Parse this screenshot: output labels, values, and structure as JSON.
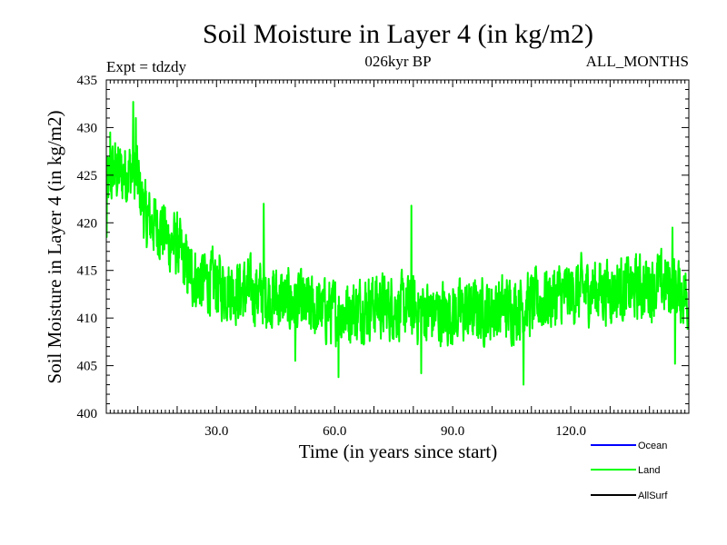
{
  "chart_data": {
    "type": "line",
    "title": "Soil Moisture in Layer 4 (in kg/m2)",
    "subtitle_left": "Expt = tdzdy",
    "subtitle_center": "026kyr BP",
    "subtitle_right": "ALL_MONTHS",
    "xlabel": "Time (in years since start)",
    "ylabel": "Soil Moisture in Layer 4 (in kg/m2)",
    "xlim": [
      2,
      150
    ],
    "ylim": [
      400,
      435
    ],
    "x_ticks": [
      30,
      60,
      90,
      120
    ],
    "x_tick_labels": [
      "30.0",
      "60.0",
      "90.0",
      "120.0"
    ],
    "y_ticks": [
      400,
      405,
      410,
      415,
      420,
      425,
      430,
      435
    ],
    "y_tick_labels": [
      "400",
      "405",
      "410",
      "415",
      "420",
      "425",
      "430",
      "435"
    ],
    "grid": false,
    "legend_position": "bottom-right",
    "series": [
      {
        "name": "Ocean",
        "color": "#0000ff",
        "values": []
      },
      {
        "name": "Land",
        "color": "#00ff00",
        "anchors_x": [
          2,
          4,
          6,
          8,
          10,
          12,
          14,
          16,
          18,
          20,
          22,
          24,
          26,
          28,
          30,
          34,
          38,
          42,
          46,
          50,
          54,
          58,
          62,
          66,
          70,
          74,
          78,
          82,
          86,
          90,
          94,
          98,
          102,
          106,
          110,
          114,
          118,
          122,
          126,
          130,
          134,
          138,
          142,
          146,
          150
        ],
        "anchors_y": [
          423.5,
          425.5,
          425.0,
          425.5,
          424.5,
          420.5,
          420.0,
          419.5,
          418.0,
          417.5,
          415.5,
          414.5,
          414.0,
          413.8,
          413.5,
          413.0,
          412.8,
          412.5,
          412.0,
          411.5,
          411.0,
          410.8,
          410.5,
          411.0,
          411.5,
          411.2,
          411.0,
          410.8,
          410.5,
          410.5,
          410.6,
          410.8,
          411.0,
          411.2,
          411.5,
          412.0,
          412.5,
          412.8,
          413.0,
          413.0,
          413.0,
          413.2,
          413.5,
          413.5,
          412.0
        ],
        "noise_amplitude": 2.6,
        "peaks": [
          [
            8.8,
            432.7
          ],
          [
            9.5,
            431.0
          ],
          [
            42.0,
            422.0
          ],
          [
            79.5,
            421.8
          ],
          [
            145.8,
            419.5
          ],
          [
            3.0,
            429.5
          ]
        ],
        "troughs": [
          [
            108.0,
            403.0
          ],
          [
            61.0,
            403.8
          ],
          [
            82.0,
            404.2
          ],
          [
            146.5,
            405.2
          ],
          [
            50.0,
            405.5
          ],
          [
            2.1,
            418.5
          ]
        ]
      },
      {
        "name": "AllSurf",
        "color": "#000000",
        "values": []
      }
    ]
  }
}
